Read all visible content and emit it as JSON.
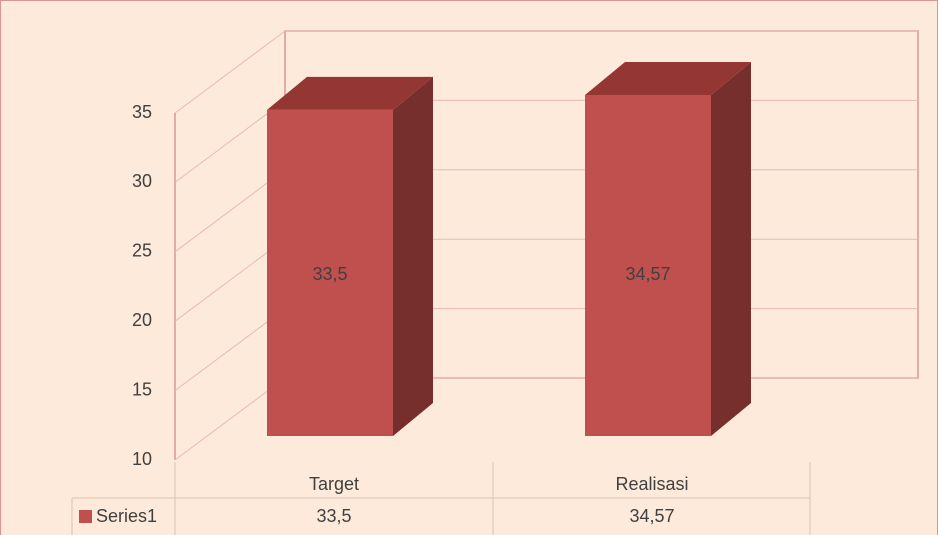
{
  "chart_data": {
    "type": "bar3d",
    "categories": [
      "Target",
      "Realisasi"
    ],
    "series": [
      {
        "name": "Series1",
        "color": "#c0504d",
        "values": [
          33.5,
          34.57
        ],
        "value_labels": [
          "33,5",
          "34,57"
        ]
      }
    ],
    "ylim": [
      10,
      35
    ],
    "yticks": [
      10,
      15,
      20,
      25,
      30,
      35
    ],
    "grid": true,
    "data_table": true
  }
}
